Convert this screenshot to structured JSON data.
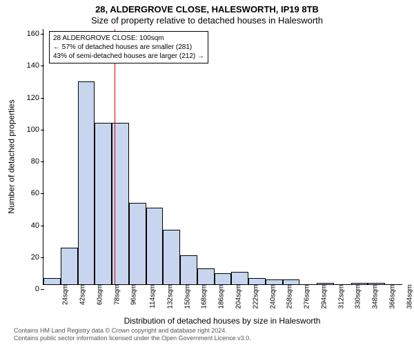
{
  "title_line1": "28, ALDERGROVE CLOSE, HALESWORTH, IP19 8TB",
  "title_line2": "Size of property relative to detached houses in Halesworth",
  "chart": {
    "type": "histogram",
    "ylabel": "Number of detached properties",
    "xlabel": "Distribution of detached houses by size in Halesworth",
    "ylim": [
      0,
      160
    ],
    "yticks": [
      0,
      20,
      40,
      60,
      80,
      100,
      120,
      140,
      160
    ],
    "x_categories": [
      "24sqm",
      "42sqm",
      "60sqm",
      "78sqm",
      "96sqm",
      "114sqm",
      "132sqm",
      "150sqm",
      "168sqm",
      "186sqm",
      "204sqm",
      "222sqm",
      "240sqm",
      "258sqm",
      "276sqm",
      "294sqm",
      "312sqm",
      "330sqm",
      "348sqm",
      "366sqm",
      "384sqm"
    ],
    "values": [
      4,
      23,
      127,
      101,
      101,
      51,
      48,
      34,
      18,
      10,
      7,
      8,
      4,
      3,
      3,
      0,
      1,
      0,
      1,
      1,
      0
    ],
    "bar_color": "#c7d6ee",
    "bar_border": "#000000",
    "bar_border_width": 0.5,
    "reference_line": {
      "x_index_after": 4.15,
      "color": "#e00000"
    },
    "annotation": {
      "lines": [
        "28 ALDERGROVE CLOSE: 100sqm",
        "← 57% of detached houses are smaller (281)",
        "43% of semi-detached houses are larger (212) →"
      ],
      "border_color": "#000000",
      "background": "#ffffff",
      "fontsize": 10
    },
    "background_color": "#ffffff",
    "axis_color": "#000000",
    "tick_fontsize": 11,
    "label_fontsize": 12
  },
  "attribution": {
    "line1": "Contains HM Land Registry data © Crown copyright and database right 2024.",
    "line2": "Contains public sector information licensed under the Open Government Licence v3.0."
  }
}
